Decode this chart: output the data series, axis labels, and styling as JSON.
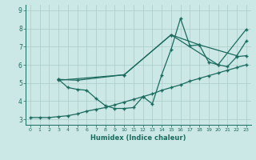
{
  "xlabel": "Humidex (Indice chaleur)",
  "xlim": [
    -0.5,
    23.5
  ],
  "ylim": [
    2.7,
    9.3
  ],
  "xticks": [
    0,
    1,
    2,
    3,
    4,
    5,
    6,
    7,
    8,
    9,
    10,
    11,
    12,
    13,
    14,
    15,
    16,
    17,
    18,
    19,
    20,
    21,
    22,
    23
  ],
  "yticks": [
    3,
    4,
    5,
    6,
    7,
    8,
    9
  ],
  "bg_color": "#cce8e6",
  "line_color": "#1a6b5e",
  "grid_color": "#aaccca",
  "lines": [
    {
      "x": [
        0,
        1,
        2,
        3,
        4,
        5,
        6,
        7,
        8,
        9,
        10,
        11,
        12,
        13,
        14,
        15,
        16,
        17,
        18,
        19,
        20,
        21,
        22,
        23
      ],
      "y": [
        3.1,
        3.1,
        3.1,
        3.15,
        3.2,
        3.3,
        3.45,
        3.55,
        3.65,
        3.8,
        3.95,
        4.1,
        4.25,
        4.4,
        4.6,
        4.75,
        4.9,
        5.1,
        5.25,
        5.4,
        5.55,
        5.7,
        5.85,
        6.0
      ]
    },
    {
      "x": [
        3,
        4,
        5,
        6,
        7,
        8,
        9,
        10,
        11,
        12,
        13,
        14,
        15,
        16,
        17,
        18,
        19,
        20,
        21,
        22,
        23
      ],
      "y": [
        5.2,
        4.75,
        4.65,
        4.6,
        4.15,
        3.75,
        3.6,
        3.6,
        3.65,
        4.25,
        3.85,
        5.45,
        6.85,
        8.55,
        7.05,
        7.1,
        6.15,
        6.0,
        5.9,
        6.45,
        6.5
      ]
    },
    {
      "x": [
        3,
        5,
        10,
        15,
        18,
        22,
        23
      ],
      "y": [
        5.2,
        5.15,
        5.45,
        7.65,
        7.1,
        6.5,
        7.3
      ]
    },
    {
      "x": [
        3,
        10,
        15,
        20,
        23
      ],
      "y": [
        5.15,
        5.45,
        7.65,
        6.0,
        7.95
      ]
    }
  ]
}
